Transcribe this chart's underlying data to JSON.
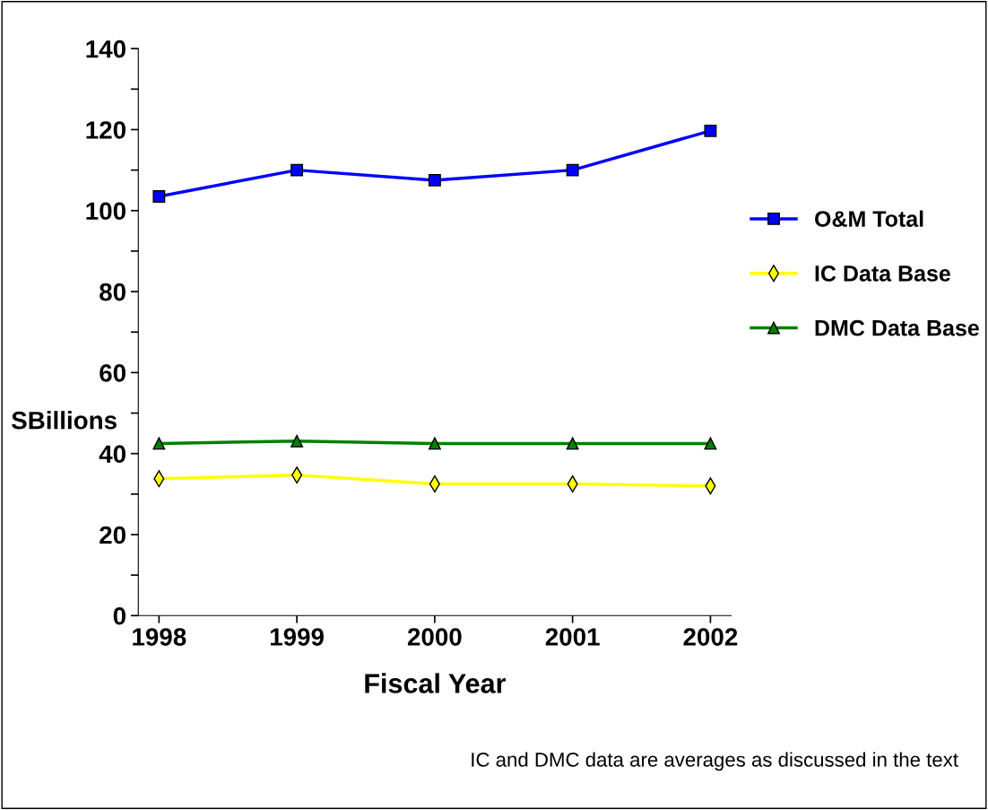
{
  "chart_data": {
    "type": "line",
    "xlabel": "Fiscal Year",
    "ylabel": "SBillions",
    "categories": [
      "1998",
      "1999",
      "2000",
      "2001",
      "2002"
    ],
    "series": [
      {
        "name": "O&M Total",
        "color": "#0000ff",
        "marker": "square",
        "values": [
          103.5,
          110,
          107.5,
          110,
          119.7
        ]
      },
      {
        "name": "IC Data Base",
        "color": "#ffff00",
        "marker": "diamond",
        "values": [
          33.8,
          34.7,
          32.5,
          32.5,
          32
        ]
      },
      {
        "name": "DMC Data Base",
        "color": "#008000",
        "marker": "triangle",
        "values": [
          42.5,
          43.1,
          42.5,
          42.5,
          42.5
        ]
      }
    ],
    "ylim": [
      0,
      140
    ],
    "yticks": [
      0,
      {
        "value": 10,
        "label": null
      },
      20,
      {
        "value": 30,
        "label": null
      },
      40,
      {
        "value": 50,
        "label": null
      },
      60,
      {
        "value": 70,
        "label": null
      },
      80,
      {
        "value": 90,
        "label": null
      },
      100,
      {
        "value": 110,
        "label": null
      },
      120,
      {
        "value": 130,
        "label": null
      },
      140
    ],
    "grid": false,
    "legend": "right",
    "line_style": "solid",
    "annotations": [
      "IC and DMC data are averages as discussed in the text"
    ]
  }
}
